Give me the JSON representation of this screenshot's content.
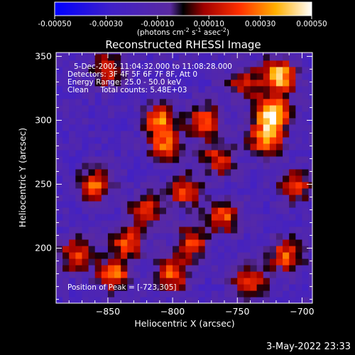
{
  "colorbar": {
    "tick_labels": [
      "-0.00050",
      "-0.00030",
      "-0.00010",
      "0.00010",
      "0.00030",
      "0.00050"
    ],
    "tick_values": [
      -0.0005,
      -0.0003,
      -0.0001,
      0.0001,
      0.0003,
      0.0005
    ],
    "range": [
      -0.0005,
      0.0005
    ],
    "units_prefix": "(photons cm",
    "units_exp1": "-2",
    "units_mid": " s",
    "units_exp2": "-1",
    "units_mid2": " asec",
    "units_exp3": "-2",
    "units_suffix": ")",
    "colors": [
      "#0000ff",
      "#5a2aa0",
      "#a00000",
      "#ff3000",
      "#ffb000",
      "#ffffff"
    ]
  },
  "chart_data": {
    "type": "heatmap",
    "title": "Reconstructed RHESSI Image",
    "xlabel": "Heliocentric X (arcsec)",
    "ylabel": "Heliocentric Y (arcsec)",
    "xlim": [
      -890,
      -692
    ],
    "ylim": [
      157,
      353
    ],
    "x_ticks": [
      -850,
      -800,
      -750,
      -700
    ],
    "x_tick_labels": [
      "−850",
      "−800",
      "−750",
      "−700"
    ],
    "y_ticks": [
      200,
      250,
      300,
      350
    ],
    "y_tick_labels": [
      "200",
      "250",
      "300",
      "350"
    ],
    "annotations": [
      "5-Dec-2002 11:04:32.000 to 11:08:28.000",
      "Detectors: 3F 4F 5F 6F 7F 8F, Att 0",
      "Energy Range: 25.0 - 50.0 keV",
      "Clean     Total counts: 5.48E+03"
    ],
    "peak_label": "Position of Peak = [-723,305]",
    "peak": [
      -723,
      305
    ],
    "sources": [
      {
        "x": -723,
        "y": 305,
        "value": 0.0005
      },
      {
        "x": -718,
        "y": 335,
        "value": 0.00042
      },
      {
        "x": -728,
        "y": 285,
        "value": 0.0003
      },
      {
        "x": -810,
        "y": 300,
        "value": 0.00028
      },
      {
        "x": -805,
        "y": 280,
        "value": 0.00024
      },
      {
        "x": -860,
        "y": 250,
        "value": 0.00026
      },
      {
        "x": -775,
        "y": 300,
        "value": 0.00022
      },
      {
        "x": -790,
        "y": 245,
        "value": 0.0002
      },
      {
        "x": -765,
        "y": 270,
        "value": 0.00018
      },
      {
        "x": -850,
        "y": 340,
        "value": 0.0002
      },
      {
        "x": -835,
        "y": 205,
        "value": 0.00022
      },
      {
        "x": -845,
        "y": 180,
        "value": 0.00026
      },
      {
        "x": -800,
        "y": 180,
        "value": 0.00024
      },
      {
        "x": -760,
        "y": 225,
        "value": 0.00022
      },
      {
        "x": -712,
        "y": 195,
        "value": 0.00024
      },
      {
        "x": -740,
        "y": 175,
        "value": 0.00022
      },
      {
        "x": -705,
        "y": 250,
        "value": 0.00018
      },
      {
        "x": -875,
        "y": 195,
        "value": 0.0002
      },
      {
        "x": -820,
        "y": 230,
        "value": 0.00016
      },
      {
        "x": -785,
        "y": 205,
        "value": 0.00018
      },
      {
        "x": -745,
        "y": 330,
        "value": 0.00014
      }
    ]
  },
  "timestamp": "3-May-2022 23:33"
}
